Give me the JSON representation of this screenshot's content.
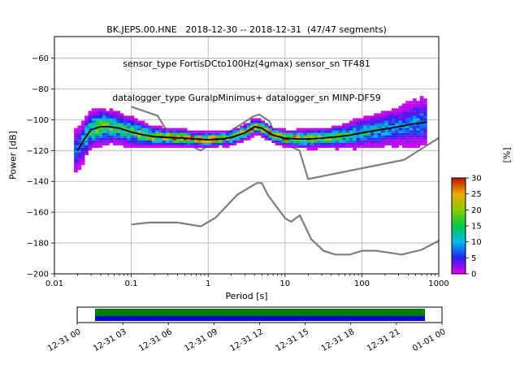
{
  "figure": {
    "title_line1": "BK.JEPS.00.HNE   2018-12-30 -- 2018-12-31  (47/47 segments)",
    "title_line2": "sensor_type FortisDCto100Hz(4gmax) sensor_sn TF481",
    "title_line3": "datalogger_type GuralpMinimus+ datalogger_sn MINP-DF59",
    "ylabel": "Power [dB]",
    "xlabel": "Period [s]",
    "colorbar_label": "[%]"
  },
  "chart_data": {
    "type": "heatmap",
    "title": "BK.JEPS.00.HNE 2018-12-30 -- 2018-12-31 (47/47 segments)",
    "xlabel": "Period [s]",
    "ylabel": "Power [dB]",
    "xscale": "log",
    "xlim": [
      0.01,
      1000
    ],
    "ylim": [
      -200,
      -46
    ],
    "x_ticks": [
      "0.01",
      "0.1",
      "1",
      "10",
      "100",
      "1000"
    ],
    "y_ticks": [
      -60,
      -80,
      -100,
      -120,
      -140,
      -160,
      -180,
      -200
    ],
    "grid": true,
    "colorbar": {
      "label": "[%]",
      "vmin": 0,
      "vmax": 30,
      "ticks": [
        0,
        5,
        10,
        15,
        20,
        25,
        30
      ],
      "stops": [
        [
          0,
          "#ee00ee"
        ],
        [
          5,
          "#2222ee"
        ],
        [
          10,
          "#00bbee"
        ],
        [
          15,
          "#00cc44"
        ],
        [
          20,
          "#88cc00"
        ],
        [
          25,
          "#eeaa00"
        ],
        [
          30,
          "#bb1100"
        ]
      ]
    },
    "ppsd_distribution": {
      "comment_units": "periods in s, power in dB, gaussian spread sigma in dB, peak probability in %",
      "periods": [
        0.02,
        0.025,
        0.03,
        0.04,
        0.05,
        0.07,
        0.1,
        0.15,
        0.2,
        0.3,
        0.5,
        0.7,
        1,
        1.5,
        2,
        3,
        4,
        5,
        7,
        10,
        15,
        20,
        30,
        50,
        70,
        100,
        150,
        200,
        300,
        500,
        700
      ],
      "mode_db": [
        -120,
        -112,
        -106.5,
        -104.5,
        -104.5,
        -105.5,
        -108,
        -110,
        -111,
        -111.5,
        -112,
        -112.5,
        -113,
        -112.5,
        -111.5,
        -108.5,
        -104.5,
        -105.5,
        -110,
        -112,
        -112.5,
        -112.5,
        -112,
        -111,
        -110,
        -108.5,
        -107,
        -106,
        -104.5,
        -102.5,
        -101.5
      ],
      "sigma_db": [
        6,
        5.5,
        5,
        5,
        4.5,
        4,
        4,
        3,
        2.5,
        2.2,
        2.2,
        2,
        2,
        1.8,
        2,
        2,
        2,
        2,
        2,
        2,
        2.2,
        2.4,
        2.5,
        3,
        3.5,
        4,
        4.5,
        5,
        5.5,
        6.5,
        7
      ],
      "peak_pct": [
        7,
        10,
        14,
        16,
        16,
        15,
        15,
        18,
        20,
        22,
        25,
        26,
        26,
        25,
        23,
        22,
        24,
        24,
        22,
        24,
        22,
        20,
        18,
        15,
        13,
        12,
        10,
        9,
        8,
        8,
        8
      ]
    },
    "mode_line_color": "#000000",
    "noise_models": {
      "color": "#7f7f7f",
      "nhnm": [
        [
          0.1,
          -91.5
        ],
        [
          0.22,
          -97.4
        ],
        [
          0.32,
          -110.5
        ],
        [
          0.8,
          -120
        ],
        [
          3.8,
          -98
        ],
        [
          4.6,
          -96.5
        ],
        [
          6.3,
          -101
        ],
        [
          7.9,
          -113.5
        ],
        [
          15.4,
          -120
        ],
        [
          20,
          -138.5
        ],
        [
          354.8,
          -126
        ],
        [
          1000,
          -111.8
        ]
      ],
      "nlnm": [
        [
          0.1,
          -168
        ],
        [
          0.17,
          -166.7
        ],
        [
          0.4,
          -166.7
        ],
        [
          0.8,
          -169.2
        ],
        [
          1.24,
          -163.7
        ],
        [
          2.4,
          -148.6
        ],
        [
          4.3,
          -141.1
        ],
        [
          5,
          -141.1
        ],
        [
          6,
          -149
        ],
        [
          10,
          -163.8
        ],
        [
          12,
          -166.2
        ],
        [
          15.6,
          -162.1
        ],
        [
          21.9,
          -177.5
        ],
        [
          31.6,
          -185
        ],
        [
          45,
          -187.5
        ],
        [
          70,
          -187.5
        ],
        [
          101,
          -185
        ],
        [
          154,
          -185
        ],
        [
          328,
          -187.5
        ],
        [
          600,
          -184.4
        ],
        [
          1000,
          -178.5
        ]
      ]
    },
    "timeline": {
      "tick_labels": [
        "12-31 00",
        "12-31 03",
        "12-31 06",
        "12-31 09",
        "12-31 12",
        "12-31 15",
        "12-31 18",
        "12-31 21",
        "01-01 00"
      ],
      "bars": [
        {
          "name": "data-coverage",
          "color": "#008000"
        },
        {
          "name": "segment-row",
          "color": "#0000dd"
        }
      ]
    }
  }
}
